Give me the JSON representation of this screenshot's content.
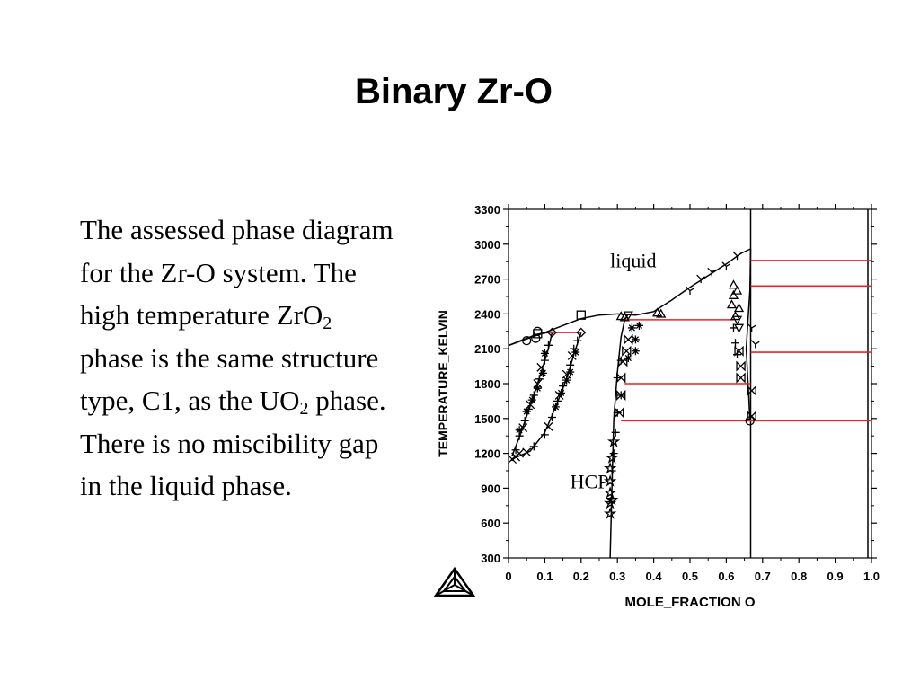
{
  "slide": {
    "title": "Binary Zr-O",
    "text": {
      "p1": "The assessed phase diagram for the Zr-O system.  The high temperature ZrO",
      "sub1": "2",
      "p2": " phase is the same structure type, C1, as the UO",
      "sub2": "2",
      "p3": " phase.  There is no miscibility gap in the liquid phase."
    }
  },
  "chart_data": {
    "type": "scatter",
    "xlabel": "MOLE_FRACTION O",
    "ylabel": "TEMPERATURE_KELVIN",
    "xlim": [
      0,
      1.0
    ],
    "ylim": [
      300,
      3300
    ],
    "x_ticks": [
      0,
      0.1,
      0.2,
      0.3,
      0.4,
      0.5,
      0.6,
      0.7,
      0.8,
      0.9,
      1.0
    ],
    "x_tick_labels": [
      "0",
      "0.1",
      "0.2",
      "0.3",
      "0.4",
      "0.5",
      "0.6",
      "0.7",
      "0.8",
      "0.9",
      "1.0"
    ],
    "y_ticks": [
      300,
      600,
      900,
      1200,
      1500,
      1800,
      2100,
      2400,
      2700,
      3000,
      3300
    ],
    "y_tick_labels": [
      "300",
      "600",
      "900",
      "1200",
      "1500",
      "1800",
      "2100",
      "2400",
      "2700",
      "3000",
      "3300"
    ],
    "grid": false,
    "annotations": [
      {
        "text": "liquid",
        "x": 0.28,
        "y": 2800
      },
      {
        "text": "HCP",
        "x": 0.17,
        "y": 900
      }
    ],
    "phase_boundaries": [
      {
        "name": "liquidus-zr-side",
        "points": [
          [
            0,
            2128
          ],
          [
            0.05,
            2185
          ],
          [
            0.1,
            2240
          ],
          [
            0.15,
            2300
          ],
          [
            0.2,
            2360
          ],
          [
            0.25,
            2390
          ],
          [
            0.3,
            2400
          ]
        ]
      },
      {
        "name": "liquidus-oxygen-side",
        "points": [
          [
            0.3,
            2400
          ],
          [
            0.35,
            2390
          ],
          [
            0.4,
            2420
          ],
          [
            0.45,
            2520
          ],
          [
            0.5,
            2630
          ],
          [
            0.55,
            2730
          ],
          [
            0.6,
            2830
          ],
          [
            0.64,
            2920
          ],
          [
            0.667,
            2960
          ]
        ]
      },
      {
        "name": "hcp-liquid-solidus",
        "points": [
          [
            0,
            2128
          ],
          [
            0.04,
            2180
          ],
          [
            0.08,
            2225
          ],
          [
            0.12,
            2245
          ]
        ]
      },
      {
        "name": "hcp-solvus-left",
        "points": [
          [
            0.01,
            1180
          ],
          [
            0.03,
            1340
          ],
          [
            0.05,
            1520
          ],
          [
            0.07,
            1700
          ],
          [
            0.09,
            1900
          ],
          [
            0.11,
            2100
          ],
          [
            0.12,
            2240
          ]
        ]
      },
      {
        "name": "hcp-solvus-right",
        "points": [
          [
            0.01,
            1150
          ],
          [
            0.06,
            1220
          ],
          [
            0.1,
            1380
          ],
          [
            0.13,
            1600
          ],
          [
            0.16,
            1840
          ],
          [
            0.18,
            2050
          ],
          [
            0.2,
            2240
          ]
        ]
      },
      {
        "name": "hcp-zro2-boundary",
        "points": [
          [
            0.28,
            300
          ],
          [
            0.285,
            900
          ],
          [
            0.29,
            1500
          ],
          [
            0.3,
            1900
          ],
          [
            0.31,
            2200
          ],
          [
            0.32,
            2350
          ],
          [
            0.33,
            2400
          ]
        ]
      },
      {
        "name": "zro2-lower-boundary",
        "points": [
          [
            0.665,
            1480
          ],
          [
            0.662,
            1700
          ],
          [
            0.66,
            1800
          ],
          [
            0.655,
            2100
          ],
          [
            0.66,
            2350
          ],
          [
            0.665,
            2600
          ],
          [
            0.667,
            2960
          ]
        ]
      },
      {
        "name": "zro2-line",
        "points": [
          [
            0.667,
            300
          ],
          [
            0.667,
            3300
          ]
        ]
      },
      {
        "name": "pure-o-line",
        "points": [
          [
            0.99,
            300
          ],
          [
            0.99,
            3300
          ]
        ]
      }
    ],
    "invariant_lines": [
      {
        "x1": 0.11,
        "x2": 0.2,
        "y": 2240
      },
      {
        "x1": 0.32,
        "x2": 0.62,
        "y": 2350
      },
      {
        "x1": 0.32,
        "x2": 0.667,
        "y": 1800
      },
      {
        "x1": 0.31,
        "x2": 0.667,
        "y": 1480
      },
      {
        "x1": 0.667,
        "x2": 1.0,
        "y": 2860
      },
      {
        "x1": 0.667,
        "x2": 1.0,
        "y": 2640
      },
      {
        "x1": 0.667,
        "x2": 1.0,
        "y": 2070
      },
      {
        "x1": 0.667,
        "x2": 1.0,
        "y": 1480
      }
    ],
    "data_points": [
      {
        "m": "+",
        "x": 0.02,
        "y": 1230
      },
      {
        "m": "+",
        "x": 0.03,
        "y": 1350
      },
      {
        "m": "+",
        "x": 0.045,
        "y": 1480
      },
      {
        "m": "+",
        "x": 0.055,
        "y": 1580
      },
      {
        "m": "+",
        "x": 0.07,
        "y": 1700
      },
      {
        "m": "+",
        "x": 0.085,
        "y": 1840
      },
      {
        "m": "+",
        "x": 0.1,
        "y": 2000
      },
      {
        "m": "+",
        "x": 0.11,
        "y": 2130
      },
      {
        "m": "+",
        "x": 0.07,
        "y": 1260
      },
      {
        "m": "+",
        "x": 0.1,
        "y": 1360
      },
      {
        "m": "+",
        "x": 0.12,
        "y": 1510
      },
      {
        "m": "+",
        "x": 0.135,
        "y": 1650
      },
      {
        "m": "+",
        "x": 0.15,
        "y": 1780
      },
      {
        "m": "+",
        "x": 0.17,
        "y": 1960
      },
      {
        "m": "+",
        "x": 0.18,
        "y": 2100
      },
      {
        "m": "+",
        "x": 0.19,
        "y": 2170
      },
      {
        "m": "x",
        "x": 0.01,
        "y": 1150
      },
      {
        "m": "x",
        "x": 0.02,
        "y": 1170
      },
      {
        "m": "x",
        "x": 0.03,
        "y": 1200
      },
      {
        "m": "x",
        "x": 0.04,
        "y": 1420
      },
      {
        "m": "x",
        "x": 0.06,
        "y": 1620
      },
      {
        "m": "x",
        "x": 0.08,
        "y": 1800
      },
      {
        "m": "x",
        "x": 0.09,
        "y": 1940
      },
      {
        "m": "x",
        "x": 0.05,
        "y": 1210
      },
      {
        "m": "x",
        "x": 0.11,
        "y": 1430
      },
      {
        "m": "x",
        "x": 0.14,
        "y": 1700
      },
      {
        "m": "x",
        "x": 0.16,
        "y": 1880
      },
      {
        "m": "x",
        "x": 0.175,
        "y": 2040
      },
      {
        "m": "*",
        "x": 0.03,
        "y": 1400
      },
      {
        "m": "*",
        "x": 0.05,
        "y": 1560
      },
      {
        "m": "*",
        "x": 0.065,
        "y": 1660
      },
      {
        "m": "*",
        "x": 0.08,
        "y": 1760
      },
      {
        "m": "*",
        "x": 0.095,
        "y": 1890
      },
      {
        "m": "*",
        "x": 0.1,
        "y": 2060
      },
      {
        "m": "*",
        "x": 0.13,
        "y": 1600
      },
      {
        "m": "*",
        "x": 0.145,
        "y": 1720
      },
      {
        "m": "*",
        "x": 0.16,
        "y": 1830
      },
      {
        "m": "*",
        "x": 0.17,
        "y": 1900
      },
      {
        "m": "*",
        "x": 0.185,
        "y": 2070
      },
      {
        "m": "*",
        "x": 0.34,
        "y": 2280
      },
      {
        "m": "*",
        "x": 0.35,
        "y": 2180
      },
      {
        "m": "*",
        "x": 0.35,
        "y": 2080
      },
      {
        "m": "*",
        "x": 0.33,
        "y": 2020
      },
      {
        "m": "*",
        "x": 0.36,
        "y": 2300
      },
      {
        "m": "+",
        "x": 0.285,
        "y": 1050
      },
      {
        "m": "+",
        "x": 0.29,
        "y": 1200
      },
      {
        "m": "+",
        "x": 0.295,
        "y": 1380
      },
      {
        "m": "+",
        "x": 0.3,
        "y": 1550
      },
      {
        "m": "+",
        "x": 0.31,
        "y": 1700
      },
      {
        "m": "+",
        "x": 0.3,
        "y": 1850
      },
      {
        "m": "+",
        "x": 0.31,
        "y": 2000
      },
      {
        "m": "+",
        "x": 0.62,
        "y": 2280
      },
      {
        "m": "+",
        "x": 0.625,
        "y": 2150
      },
      {
        "m": "+",
        "x": 0.63,
        "y": 2050
      },
      {
        "m": "star",
        "x": 0.28,
        "y": 680
      },
      {
        "m": "star",
        "x": 0.28,
        "y": 770
      },
      {
        "m": "star",
        "x": 0.28,
        "y": 860
      },
      {
        "m": "star",
        "x": 0.28,
        "y": 960
      },
      {
        "m": "star",
        "x": 0.28,
        "y": 1070
      },
      {
        "m": "star",
        "x": 0.285,
        "y": 1160
      },
      {
        "m": "star",
        "x": 0.285,
        "y": 800
      },
      {
        "m": "star",
        "x": 0.29,
        "y": 1300
      },
      {
        "m": "tri",
        "x": 0.31,
        "y": 2380
      },
      {
        "m": "tri",
        "x": 0.32,
        "y": 2370
      },
      {
        "m": "tri",
        "x": 0.41,
        "y": 2410
      },
      {
        "m": "tri",
        "x": 0.42,
        "y": 2400
      },
      {
        "m": "tri",
        "x": 0.62,
        "y": 2650
      },
      {
        "m": "tri",
        "x": 0.62,
        "y": 2560
      },
      {
        "m": "tri",
        "x": 0.615,
        "y": 2480
      },
      {
        "m": "tri",
        "x": 0.625,
        "y": 2380
      },
      {
        "m": "tri",
        "x": 0.63,
        "y": 2600
      },
      {
        "m": "tri",
        "x": 0.635,
        "y": 2450
      },
      {
        "m": "tridown",
        "x": 0.33,
        "y": 2390
      },
      {
        "m": "tridown",
        "x": 0.63,
        "y": 2350
      },
      {
        "m": "tridown",
        "x": 0.635,
        "y": 2280
      },
      {
        "m": "bow",
        "x": 0.305,
        "y": 1550
      },
      {
        "m": "bow",
        "x": 0.31,
        "y": 1700
      },
      {
        "m": "bow",
        "x": 0.31,
        "y": 1850
      },
      {
        "m": "bow",
        "x": 0.315,
        "y": 1990
      },
      {
        "m": "bow",
        "x": 0.325,
        "y": 2080
      },
      {
        "m": "bow",
        "x": 0.33,
        "y": 2180
      },
      {
        "m": "bow",
        "x": 0.64,
        "y": 1850
      },
      {
        "m": "bow",
        "x": 0.64,
        "y": 1950
      },
      {
        "m": "bow",
        "x": 0.635,
        "y": 2080
      },
      {
        "m": "bow",
        "x": 0.67,
        "y": 1740
      },
      {
        "m": "bow",
        "x": 0.67,
        "y": 1520
      },
      {
        "m": "square",
        "x": 0.2,
        "y": 2390
      },
      {
        "m": "square",
        "x": 0.08,
        "y": 2230
      },
      {
        "m": "circle",
        "x": 0.05,
        "y": 2170
      },
      {
        "m": "circle",
        "x": 0.075,
        "y": 2190
      },
      {
        "m": "circle",
        "x": 0.08,
        "y": 2250
      },
      {
        "m": "circle",
        "x": 0.665,
        "y": 1480
      },
      {
        "m": "diamond",
        "x": 0.2,
        "y": 2240
      },
      {
        "m": "diamond",
        "x": 0.12,
        "y": 2240
      },
      {
        "m": "y",
        "x": 0.5,
        "y": 2600
      },
      {
        "m": "y",
        "x": 0.53,
        "y": 2700
      },
      {
        "m": "y",
        "x": 0.56,
        "y": 2760
      },
      {
        "m": "y",
        "x": 0.6,
        "y": 2810
      },
      {
        "m": "y",
        "x": 0.63,
        "y": 2900
      },
      {
        "m": "y",
        "x": 0.67,
        "y": 2280
      },
      {
        "m": "y",
        "x": 0.68,
        "y": 2140
      }
    ]
  }
}
